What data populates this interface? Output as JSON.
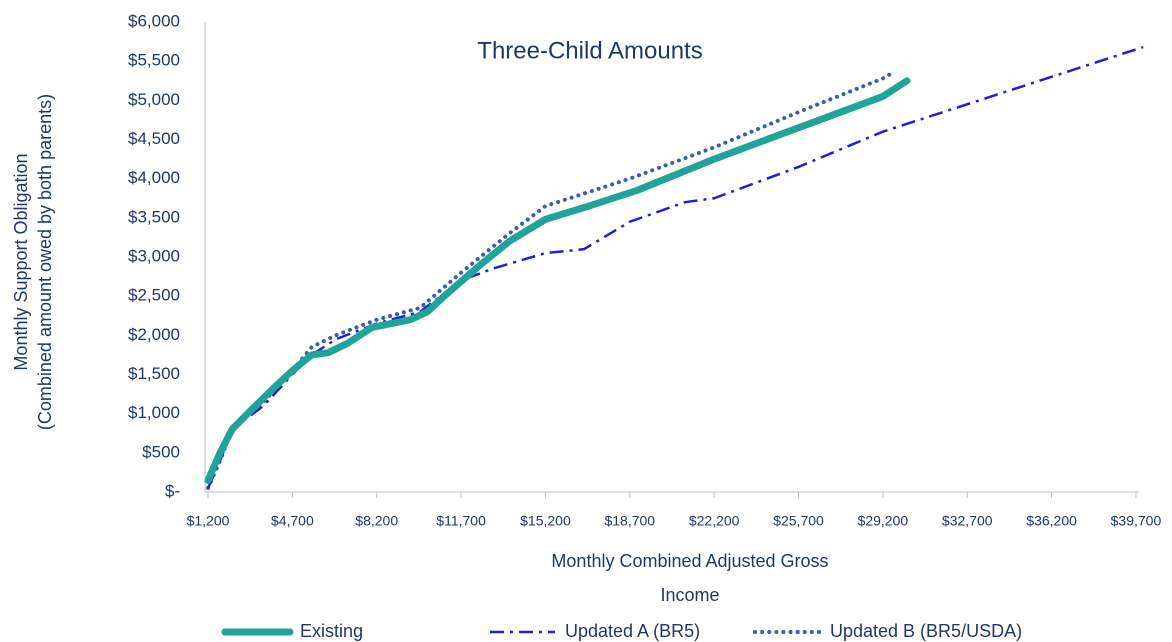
{
  "chart_data": {
    "type": "line",
    "title": "Three-Child Amounts",
    "y_label": [
      "Monthly  Support Obligation",
      "(Combined amount owed by both parents)"
    ],
    "x_label": [
      "Monthly Combined Adjusted Gross",
      "Income"
    ],
    "xlim": [
      1200,
      40200
    ],
    "ylim": [
      0,
      6000
    ],
    "xticks": [
      {
        "value": 1200,
        "label": "$1,200"
      },
      {
        "value": 4700,
        "label": "$4,700"
      },
      {
        "value": 8200,
        "label": "$8,200"
      },
      {
        "value": 11700,
        "label": "$11,700"
      },
      {
        "value": 15200,
        "label": "$15,200"
      },
      {
        "value": 18700,
        "label": "$18,700"
      },
      {
        "value": 22200,
        "label": "$22,200"
      },
      {
        "value": 25700,
        "label": "$25,700"
      },
      {
        "value": 29200,
        "label": "$29,200"
      },
      {
        "value": 32700,
        "label": "$32,700"
      },
      {
        "value": 36200,
        "label": "$36,200"
      },
      {
        "value": 39700,
        "label": "$39,700"
      }
    ],
    "yticks": [
      {
        "value": 0,
        "label": "$-"
      },
      {
        "value": 500,
        "label": "$500"
      },
      {
        "value": 1000,
        "label": "$1,000"
      },
      {
        "value": 1500,
        "label": "$1,500"
      },
      {
        "value": 2000,
        "label": "$2,000"
      },
      {
        "value": 2500,
        "label": "$2,500"
      },
      {
        "value": 3000,
        "label": "$3,000"
      },
      {
        "value": 3500,
        "label": "$3,500"
      },
      {
        "value": 4000,
        "label": "$4,000"
      },
      {
        "value": 4500,
        "label": "$4,500"
      },
      {
        "value": 5000,
        "label": "$5,000"
      },
      {
        "value": 5500,
        "label": "$5,500"
      },
      {
        "value": 6000,
        "label": "$6,000"
      }
    ],
    "grid": false,
    "series": [
      {
        "name": "Existing",
        "color": "#1fa39b",
        "style": "solid",
        "x": [
          1200,
          1700,
          2200,
          3000,
          4000,
          4700,
          5500,
          6200,
          7000,
          8000,
          8800,
          9600,
          10300,
          11000,
          12500,
          13700,
          15200,
          17000,
          19000,
          22200,
          25700,
          29200,
          30200
        ],
        "values": [
          150,
          500,
          800,
          1050,
          1350,
          1550,
          1750,
          1780,
          1900,
          2100,
          2150,
          2200,
          2300,
          2500,
          2900,
          3200,
          3480,
          3650,
          3850,
          4250,
          4650,
          5050,
          5250
        ]
      },
      {
        "name": "Updated A (BR5)",
        "color": "#1f1fd6",
        "style": "dashdot",
        "x": [
          1200,
          1700,
          2200,
          3500,
          4700,
          5500,
          6500,
          8200,
          10000,
          11700,
          13000,
          15200,
          16800,
          18700,
          21000,
          22200,
          25700,
          29200,
          32700,
          36200,
          40000
        ],
        "values": [
          50,
          400,
          800,
          1100,
          1500,
          1750,
          1950,
          2150,
          2300,
          2700,
          2850,
          3050,
          3100,
          3450,
          3700,
          3750,
          4150,
          4600,
          4950,
          5300,
          5680
        ]
      },
      {
        "name": "Updated B (BR5/USDA)",
        "color": "#3a5bb0",
        "style": "dotted",
        "x": [
          1200,
          1700,
          2200,
          3500,
          4700,
          5500,
          6500,
          8200,
          10000,
          11700,
          13700,
          15200,
          18700,
          22200,
          25700,
          29200,
          29600
        ],
        "values": [
          50,
          400,
          800,
          1150,
          1550,
          1850,
          2000,
          2200,
          2350,
          2800,
          3300,
          3650,
          4000,
          4400,
          4850,
          5280,
          5350
        ]
      }
    ]
  }
}
